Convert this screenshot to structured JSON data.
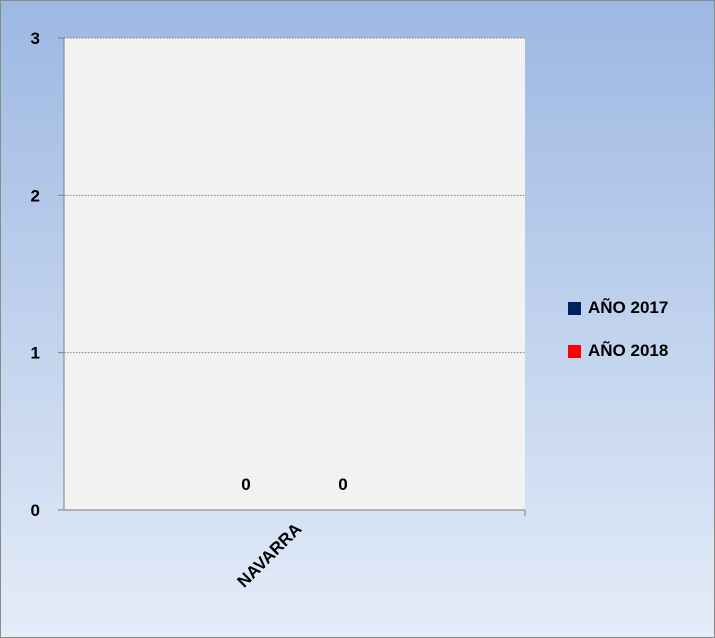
{
  "chart_data": {
    "type": "bar",
    "categories": [
      "NAVARRA"
    ],
    "series": [
      {
        "name": "AÑO 2017",
        "values": [
          0
        ],
        "color": "#002060"
      },
      {
        "name": "AÑO 2018",
        "values": [
          0
        ],
        "color": "#ff0000"
      }
    ],
    "data_labels": [
      "0",
      "0"
    ],
    "ylim": [
      0,
      3
    ],
    "yticks": [
      "0",
      "1",
      "2",
      "3"
    ],
    "grid": "horizontal-dotted",
    "legend_position": "right",
    "colors": {
      "background_top": "#9db8e2",
      "background_bottom": "#e4ecf8",
      "plot_area": "#f2f2f2",
      "gridline": "#7f7f7f"
    }
  }
}
